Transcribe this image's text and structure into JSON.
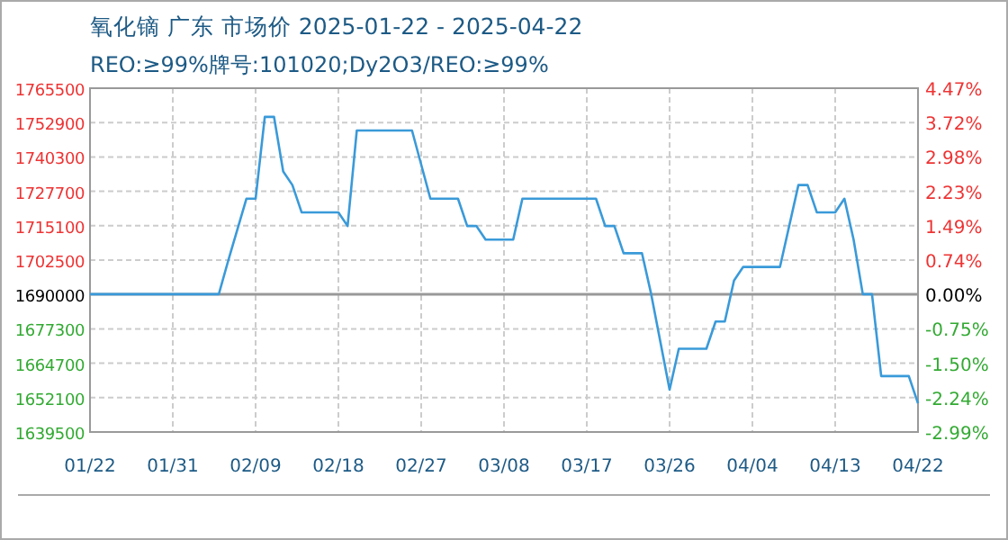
{
  "chart_data": {
    "type": "line",
    "title": "氧化镝 广东 市场价 2025-01-22 - 2025-04-22",
    "subtitle": "REO:≥99%牌号:101020;Dy2O3/REO:≥99%",
    "x": [
      "2025-01-22",
      "2025-02-05",
      "2025-02-06",
      "2025-02-08",
      "2025-02-09",
      "2025-02-10",
      "2025-02-11",
      "2025-02-12",
      "2025-02-13",
      "2025-02-14",
      "2025-02-18",
      "2025-02-19",
      "2025-02-20",
      "2025-02-26",
      "2025-02-28",
      "2025-03-03",
      "2025-03-04",
      "2025-03-05",
      "2025-03-06",
      "2025-03-09",
      "2025-03-10",
      "2025-03-18",
      "2025-03-19",
      "2025-03-20",
      "2025-03-21",
      "2025-03-23",
      "2025-03-24",
      "2025-03-26",
      "2025-03-27",
      "2025-03-30",
      "2025-03-31",
      "2025-04-01",
      "2025-04-02",
      "2025-04-03",
      "2025-04-07",
      "2025-04-09",
      "2025-04-10",
      "2025-04-11",
      "2025-04-13",
      "2025-04-14",
      "2025-04-15",
      "2025-04-16",
      "2025-04-17",
      "2025-04-18",
      "2025-04-21",
      "2025-04-22"
    ],
    "series": [
      {
        "color": "#3a9ad9",
        "values": [
          1690000,
          1690000,
          1702000,
          1725000,
          1725000,
          1755000,
          1755000,
          1735000,
          1730000,
          1720000,
          1720000,
          1715000,
          1750000,
          1750000,
          1725000,
          1725000,
          1715000,
          1715000,
          1710000,
          1710000,
          1725000,
          1725000,
          1715000,
          1715000,
          1705000,
          1705000,
          1690000,
          1655000,
          1670000,
          1670000,
          1680000,
          1680000,
          1695000,
          1700000,
          1700000,
          1730000,
          1730000,
          1720000,
          1720000,
          1725000,
          1710000,
          1690000,
          1690000,
          1660000,
          1660000,
          1650000
        ]
      }
    ],
    "xlim": [
      "2025-01-22",
      "2025-04-22"
    ],
    "xticks": [
      {
        "value": "2025-01-22",
        "label": "01/22"
      },
      {
        "value": "2025-01-31",
        "label": "01/31"
      },
      {
        "value": "2025-02-09",
        "label": "02/09"
      },
      {
        "value": "2025-02-18",
        "label": "02/18"
      },
      {
        "value": "2025-02-27",
        "label": "02/27"
      },
      {
        "value": "2025-03-08",
        "label": "03/08"
      },
      {
        "value": "2025-03-17",
        "label": "03/17"
      },
      {
        "value": "2025-03-26",
        "label": "03/26"
      },
      {
        "value": "2025-04-04",
        "label": "04/04"
      },
      {
        "value": "2025-04-13",
        "label": "04/13"
      },
      {
        "value": "2025-04-22",
        "label": "04/22"
      }
    ],
    "ylim": [
      1639500,
      1765500
    ],
    "yticks": [
      1639500,
      1652100,
      1664700,
      1677300,
      1690000,
      1702500,
      1715100,
      1727700,
      1740300,
      1752900,
      1765500
    ],
    "y2lim": [
      -2.99,
      4.47
    ],
    "y2ticks": [
      {
        "value": -2.99,
        "label": "-2.99%"
      },
      {
        "value": -2.24,
        "label": "-2.24%"
      },
      {
        "value": -1.5,
        "label": "-1.50%"
      },
      {
        "value": -0.75,
        "label": "-0.75%"
      },
      {
        "value": 0,
        "label": "0.00%"
      },
      {
        "value": 0.74,
        "label": "0.74%"
      },
      {
        "value": 1.49,
        "label": "1.49%"
      },
      {
        "value": 2.23,
        "label": "2.23%"
      },
      {
        "value": 2.98,
        "label": "2.98%"
      },
      {
        "value": 3.72,
        "label": "3.72%"
      },
      {
        "value": 4.47,
        "label": "4.47%"
      }
    ],
    "ref_lines": [
      {
        "axis": "y",
        "value": 1690000,
        "color": "#999999"
      }
    ],
    "grid": true,
    "marker": "none",
    "line_style": "solid"
  }
}
